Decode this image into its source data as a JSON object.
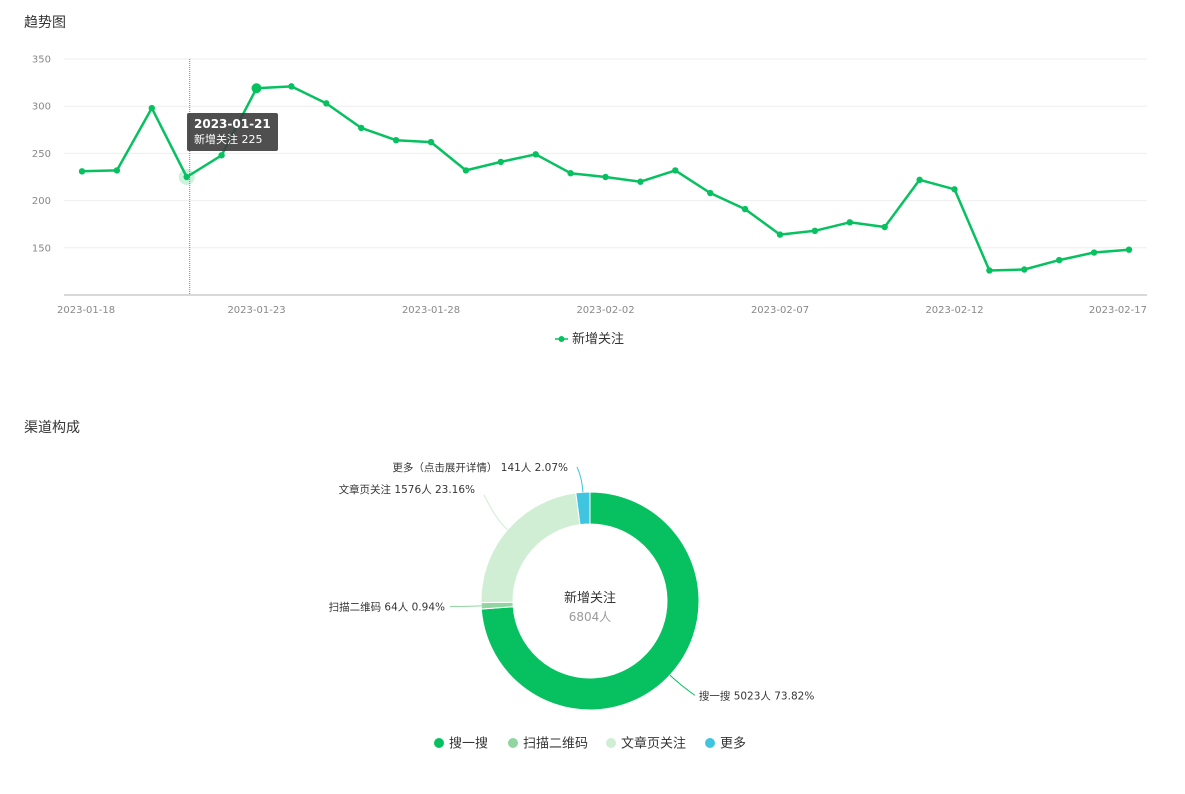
{
  "trend": {
    "title": "趋势图",
    "tooltip": {
      "date": "2023-01-21",
      "series_label": "新增关注",
      "value": "225"
    }
  },
  "channel": {
    "title": "渠道构成"
  },
  "chart_data": [
    {
      "type": "line",
      "title": "",
      "xlabel": "",
      "ylabel": "",
      "ylim": [
        100,
        350
      ],
      "yticks": [
        150,
        200,
        250,
        300,
        350
      ],
      "xtick_labels": [
        "2023-01-18",
        "2023-01-23",
        "2023-01-28",
        "2023-02-02",
        "2023-02-07",
        "2023-02-12",
        "2023-02-17"
      ],
      "x": [
        "2023-01-18",
        "2023-01-19",
        "2023-01-20",
        "2023-01-21",
        "2023-01-22",
        "2023-01-23",
        "2023-01-24",
        "2023-01-25",
        "2023-01-26",
        "2023-01-27",
        "2023-01-28",
        "2023-01-29",
        "2023-01-30",
        "2023-01-31",
        "2023-02-01",
        "2023-02-02",
        "2023-02-03",
        "2023-02-04",
        "2023-02-05",
        "2023-02-06",
        "2023-02-07",
        "2023-02-08",
        "2023-02-09",
        "2023-02-10",
        "2023-02-11",
        "2023-02-12",
        "2023-02-13",
        "2023-02-14",
        "2023-02-15",
        "2023-02-16",
        "2023-02-17"
      ],
      "series": [
        {
          "name": "新增关注",
          "color": "#07c160",
          "values": [
            231,
            232,
            298,
            225,
            248,
            319,
            321,
            303,
            277,
            264,
            262,
            232,
            241,
            249,
            229,
            225,
            220,
            232,
            208,
            191,
            164,
            168,
            177,
            172,
            222,
            212,
            126,
            127,
            137,
            145,
            148
          ]
        }
      ],
      "highlight_index": 3,
      "legend": "bottom",
      "grid": true
    },
    {
      "type": "pie",
      "variant": "donut",
      "center_title": "新增关注",
      "center_value": "6804人",
      "slices": [
        {
          "name": "搜一搜",
          "value": 5023,
          "percent": "73.82%",
          "color": "#07c160",
          "label": "搜一搜 5023人 73.82%"
        },
        {
          "name": "扫描二维码",
          "value": 64,
          "percent": "0.94%",
          "color": "#91d5a0",
          "label": "扫描二维码 64人 0.94%"
        },
        {
          "name": "文章页关注",
          "value": 1576,
          "percent": "23.16%",
          "color": "#d0eed3",
          "label": "文章页关注 1576人 23.16%"
        },
        {
          "name": "更多",
          "value": 141,
          "percent": "2.07%",
          "color": "#40c5e0",
          "label": "更多（点击展开详情） 141人 2.07%"
        }
      ],
      "legend": "bottom"
    }
  ]
}
